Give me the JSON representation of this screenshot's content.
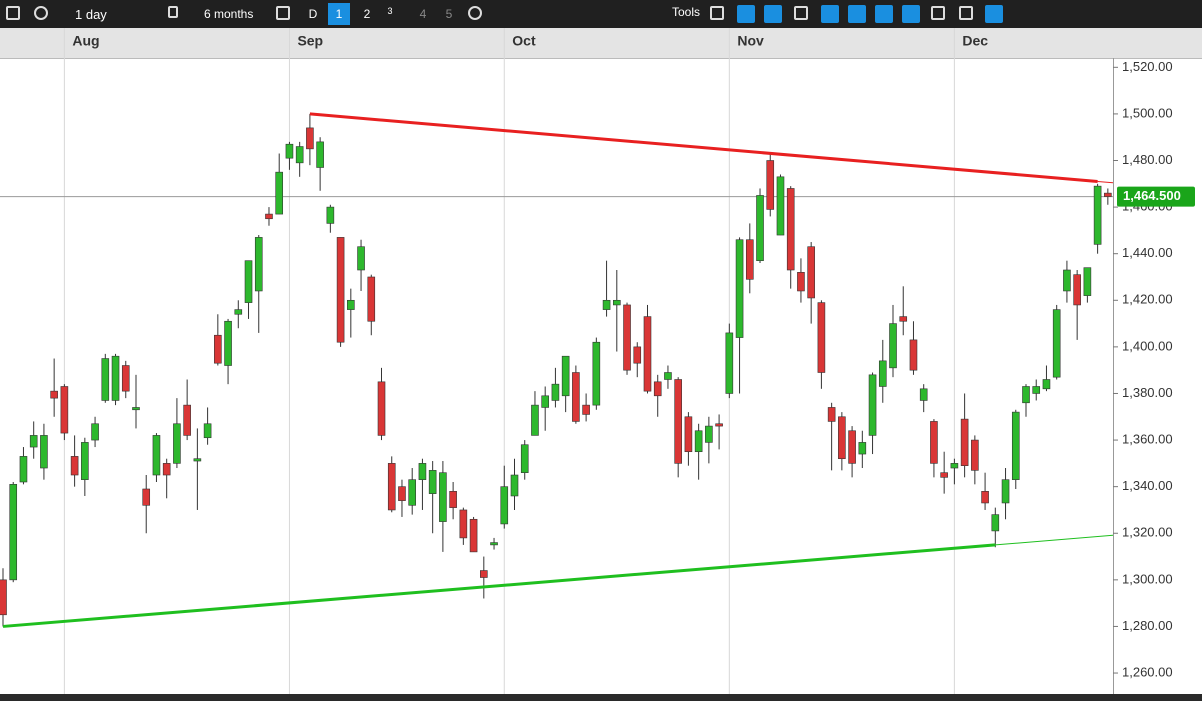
{
  "toolbar": {
    "interval": "1 day",
    "range": "6 months",
    "mode": "D",
    "pages": [
      "1",
      "2",
      "3",
      "4",
      "5"
    ],
    "tools": "Tools"
  },
  "chart_data": {
    "type": "candlestick",
    "categories": [
      null,
      null,
      null,
      null,
      null,
      null,
      "Aug",
      null,
      null,
      null,
      null,
      null,
      null,
      null,
      null,
      null,
      null,
      null,
      null,
      null,
      null,
      null,
      null,
      null,
      null,
      null,
      null,
      null,
      "Sep",
      null,
      null,
      null,
      null,
      null,
      null,
      null,
      null,
      null,
      null,
      null,
      null,
      null,
      null,
      null,
      null,
      null,
      null,
      null,
      null,
      "Oct",
      null,
      null,
      null,
      null,
      null,
      null,
      null,
      null,
      null,
      null,
      null,
      null,
      null,
      null,
      null,
      null,
      null,
      null,
      null,
      null,
      null,
      "Nov",
      null,
      null,
      null,
      null,
      null,
      null,
      null,
      null,
      null,
      null,
      null,
      null,
      null,
      null,
      null,
      null,
      null,
      null,
      null,
      null,
      null,
      "Dec",
      null,
      null,
      null,
      null,
      null,
      null,
      null,
      null,
      null,
      null,
      null,
      null,
      null,
      null,
      null
    ],
    "open": [
      1300,
      1300,
      1342,
      1357,
      1348,
      1381,
      1383,
      1353,
      1343,
      1360,
      1377,
      1377,
      1392,
      1373,
      1339,
      1345,
      1350,
      1350,
      1375,
      1351,
      1361,
      1405,
      1392,
      1414,
      1419,
      1424,
      1457,
      1457,
      1481,
      1479,
      1494,
      1477,
      1453,
      1447,
      1416,
      1433,
      1430,
      1385,
      1350,
      1340,
      1332,
      1343,
      1337,
      1325,
      1338,
      1330,
      1326,
      1304,
      1315,
      1324,
      1336,
      1346,
      1362,
      1374,
      1377,
      1379,
      1389,
      1375,
      1375,
      1416,
      1418,
      1418,
      1400,
      1413,
      1385,
      1386,
      1386,
      1370,
      1355,
      1359,
      1367,
      1380,
      1404,
      1446,
      1437,
      1480,
      1448,
      1468,
      1432,
      1443,
      1419,
      1374,
      1370,
      1364,
      1354,
      1362,
      1383,
      1391,
      1413,
      1403,
      1377,
      1368,
      1346,
      1348,
      1369,
      1360,
      1338,
      1321,
      1333,
      1343,
      1376,
      1380,
      1382,
      1387,
      1424,
      1431,
      1422,
      1444,
      1466
    ],
    "high": [
      1305,
      1342,
      1357,
      1368,
      1367,
      1395,
      1384,
      1362,
      1361,
      1370,
      1397,
      1397,
      1394,
      1388,
      1345,
      1363,
      1352,
      1378,
      1386,
      1365,
      1374,
      1414,
      1412,
      1420,
      1437,
      1448,
      1460,
      1483,
      1488,
      1488,
      1500,
      1490,
      1461,
      1447,
      1425,
      1446,
      1431,
      1391,
      1353,
      1343,
      1348,
      1352,
      1351,
      1351,
      1342,
      1331,
      1327,
      1310,
      1318,
      1349,
      1352,
      1360,
      1381,
      1383,
      1391,
      1396,
      1392,
      1380,
      1404,
      1437,
      1433,
      1419,
      1402,
      1418,
      1388,
      1392,
      1387,
      1372,
      1367,
      1370,
      1371,
      1410,
      1447,
      1453,
      1468,
      1483,
      1474,
      1469,
      1438,
      1445,
      1420,
      1376,
      1372,
      1366,
      1364,
      1389,
      1403,
      1418,
      1426,
      1411,
      1384,
      1369,
      1355,
      1352,
      1380,
      1362,
      1346,
      1331,
      1348,
      1373,
      1384,
      1386,
      1392,
      1418,
      1437,
      1433,
      1434,
      1470,
      1468
    ],
    "low": [
      1280,
      1299,
      1341,
      1352,
      1343,
      1370,
      1360,
      1340,
      1336,
      1357,
      1376,
      1375,
      1378,
      1365,
      1320,
      1342,
      1335,
      1348,
      1360,
      1330,
      1358,
      1392,
      1384,
      1408,
      1412,
      1406,
      1452,
      1457,
      1476,
      1473,
      1478,
      1467,
      1449,
      1400,
      1404,
      1424,
      1405,
      1360,
      1329,
      1327,
      1328,
      1330,
      1320,
      1312,
      1326,
      1315,
      1312,
      1292,
      1313,
      1322,
      1330,
      1343,
      1362,
      1364,
      1374,
      1372,
      1367,
      1368,
      1373,
      1413,
      1398,
      1388,
      1387,
      1380,
      1370,
      1382,
      1344,
      1349,
      1343,
      1350,
      1356,
      1378,
      1380,
      1423,
      1436,
      1456,
      1448,
      1425,
      1419,
      1410,
      1382,
      1347,
      1347,
      1344,
      1348,
      1354,
      1376,
      1387,
      1405,
      1388,
      1372,
      1344,
      1337,
      1341,
      1344,
      1341,
      1330,
      1314,
      1326,
      1339,
      1370,
      1377,
      1381,
      1386,
      1419,
      1403,
      1419,
      1440,
      1461
    ],
    "close": [
      1285,
      1341,
      1353,
      1362,
      1362,
      1378,
      1363,
      1345,
      1359,
      1367,
      1395,
      1396,
      1381,
      1374,
      1332,
      1362,
      1345,
      1367,
      1362,
      1352,
      1367,
      1393,
      1411,
      1416,
      1437,
      1447,
      1455,
      1475,
      1487,
      1486,
      1485,
      1488,
      1460,
      1402,
      1420,
      1443,
      1411,
      1362,
      1330,
      1334,
      1343,
      1350,
      1347,
      1346,
      1331,
      1318,
      1312,
      1301,
      1316,
      1340,
      1345,
      1358,
      1375,
      1379,
      1384,
      1396,
      1368,
      1371,
      1402,
      1420,
      1420,
      1390,
      1393,
      1381,
      1379,
      1389,
      1350,
      1355,
      1364,
      1366,
      1366,
      1406,
      1446,
      1429,
      1465,
      1459,
      1473,
      1433,
      1424,
      1421,
      1389,
      1368,
      1352,
      1350,
      1359,
      1388,
      1394,
      1410,
      1411,
      1390,
      1382,
      1350,
      1344,
      1350,
      1349,
      1347,
      1333,
      1328,
      1343,
      1372,
      1383,
      1383,
      1386,
      1416,
      1433,
      1418,
      1434,
      1469,
      1464.5
    ],
    "up_color": "#2db82d",
    "down_color": "#d93636",
    "ylim": [
      1251,
      1524
    ],
    "yticks": [
      {
        "value": 1260,
        "label": "1,260.00"
      },
      {
        "value": 1280,
        "label": "1,280.00"
      },
      {
        "value": 1300,
        "label": "1,300.00"
      },
      {
        "value": 1320,
        "label": "1,320.00"
      },
      {
        "value": 1340,
        "label": "1,340.00"
      },
      {
        "value": 1360,
        "label": "1,360.00"
      },
      {
        "value": 1380,
        "label": "1,380.00"
      },
      {
        "value": 1400,
        "label": "1,400.00"
      },
      {
        "value": 1420,
        "label": "1,420.00"
      },
      {
        "value": 1440,
        "label": "1,440.00"
      },
      {
        "value": 1460,
        "label": "1,460.00"
      },
      {
        "value": 1480,
        "label": "1,480.00"
      },
      {
        "value": 1500,
        "label": "1,500.00"
      },
      {
        "value": 1520,
        "label": "1,520.00"
      }
    ],
    "last_price": {
      "value": 1464.5,
      "label": "1,464.500",
      "color": "#1aa51a"
    },
    "trendlines": [
      {
        "color": "#e82020",
        "points": [
          [
            30,
            1500
          ],
          [
            107,
            1471
          ]
        ]
      },
      {
        "color": "#1fbf1f",
        "points": [
          [
            0,
            1280
          ],
          [
            97,
            1315
          ]
        ]
      }
    ],
    "grid": true
  }
}
